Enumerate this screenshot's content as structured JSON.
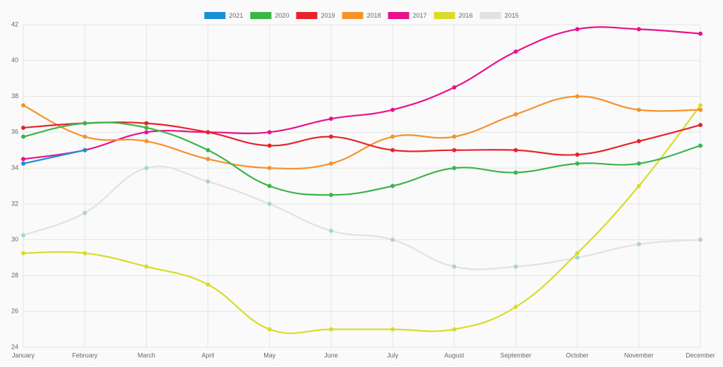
{
  "chart_data": {
    "type": "line",
    "categories": [
      "January",
      "February",
      "March",
      "April",
      "May",
      "June",
      "July",
      "August",
      "September",
      "October",
      "November",
      "December"
    ],
    "series": [
      {
        "name": "2021",
        "color": "#1a8fd6",
        "values": [
          34.25,
          35,
          null,
          null,
          null,
          null,
          null,
          null,
          null,
          null,
          null,
          null
        ]
      },
      {
        "name": "2020",
        "color": "#3cb54a",
        "values": [
          35.75,
          36.5,
          36.25,
          35,
          33,
          32.5,
          33,
          34,
          33.75,
          34.25,
          34.25,
          35.25
        ]
      },
      {
        "name": "2019",
        "color": "#e8232a",
        "values": [
          36.25,
          36.5,
          36.5,
          36,
          35.25,
          35.75,
          35,
          35,
          35,
          34.75,
          35.5,
          36.4
        ]
      },
      {
        "name": "2018",
        "color": "#f7922a",
        "values": [
          37.5,
          35.75,
          35.5,
          34.5,
          34,
          34.25,
          35.75,
          35.75,
          37,
          38,
          37.25,
          37.25
        ]
      },
      {
        "name": "2017",
        "color": "#e8128c",
        "values": [
          34.5,
          35,
          36,
          36,
          36,
          36.75,
          37.25,
          38.5,
          40.5,
          41.75,
          41.75,
          41.5
        ]
      },
      {
        "name": "2016",
        "color": "#d9dc2a",
        "values": [
          29.25,
          29.25,
          28.5,
          27.5,
          25,
          25,
          25,
          25,
          26.25,
          29.25,
          33,
          37.5
        ]
      },
      {
        "name": "2015",
        "color": "#e2e2e2",
        "point_color": "#a9d3da",
        "values": [
          30.25,
          31.5,
          34,
          33.25,
          32,
          30.5,
          30,
          28.5,
          28.5,
          29,
          29.75,
          30
        ]
      }
    ],
    "ylim": [
      24,
      42
    ],
    "yticks": [
      24,
      26,
      28,
      30,
      32,
      34,
      36,
      38,
      40,
      42
    ],
    "grid": true,
    "legend": "top",
    "smooth": true
  }
}
